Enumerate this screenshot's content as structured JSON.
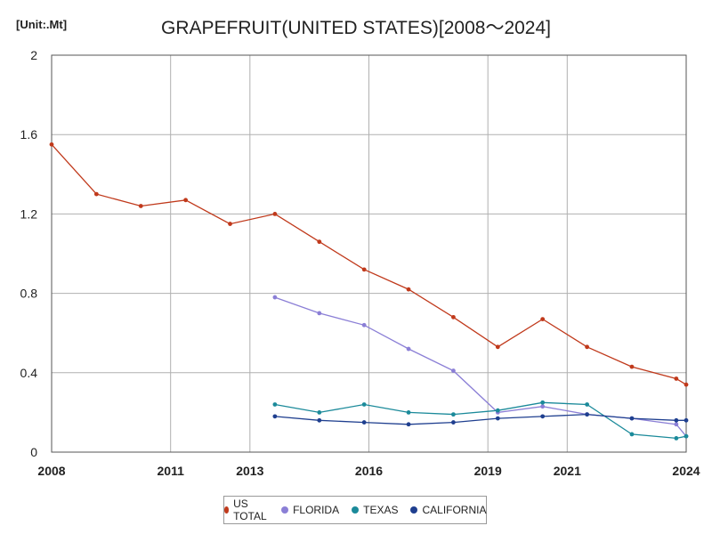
{
  "unit_label": "[Unit:.Mt]",
  "chart_data": {
    "type": "line",
    "title": "GRAPEFRUIT(UNITED STATES)[2008～2024]",
    "xlabel": "",
    "ylabel": "",
    "xlim": [
      2008,
      2024
    ],
    "ylim": [
      0,
      2
    ],
    "x_ticks": [
      "2008",
      "2011",
      "2013",
      "2016",
      "2019",
      "2021",
      "2024"
    ],
    "y_ticks": [
      "0",
      "0.4",
      "0.8",
      "1.2",
      "1.6",
      "2"
    ],
    "grid": true,
    "legend_position": "bottom",
    "series": [
      {
        "name": "US TOTAL",
        "color": "#c0391b",
        "x": [
          2008,
          2009.13,
          2010.25,
          2011.38,
          2012.5,
          2013.63,
          2014.75,
          2015.88,
          2017,
          2018.13,
          2019.25,
          2020.38,
          2021.5,
          2022.63,
          2023.75,
          2024
        ],
        "values": [
          1.55,
          1.3,
          1.24,
          1.27,
          1.15,
          1.2,
          1.06,
          0.92,
          0.82,
          0.68,
          0.53,
          0.67,
          0.53,
          0.43,
          0.37,
          0.34
        ]
      },
      {
        "name": "FLORIDA",
        "color": "#8b7fd6",
        "x": [
          2013.63,
          2014.75,
          2015.88,
          2017,
          2018.13,
          2019.25,
          2020.38,
          2021.5,
          2022.63,
          2023.75,
          2024
        ],
        "values": [
          0.78,
          0.7,
          0.64,
          0.52,
          0.41,
          0.2,
          0.23,
          0.19,
          0.17,
          0.14,
          0.08
        ]
      },
      {
        "name": "TEXAS",
        "color": "#1b8a9a",
        "x": [
          2013.63,
          2014.75,
          2015.88,
          2017,
          2018.13,
          2019.25,
          2020.38,
          2021.5,
          2022.63,
          2023.75,
          2024
        ],
        "values": [
          0.24,
          0.2,
          0.24,
          0.2,
          0.19,
          0.21,
          0.25,
          0.24,
          0.09,
          0.07,
          0.08
        ]
      },
      {
        "name": "CALIFORNIA",
        "color": "#1f3f8f",
        "x": [
          2013.63,
          2014.75,
          2015.88,
          2017,
          2018.13,
          2019.25,
          2020.38,
          2021.5,
          2022.63,
          2023.75,
          2024
        ],
        "values": [
          0.18,
          0.16,
          0.15,
          0.14,
          0.15,
          0.17,
          0.18,
          0.19,
          0.17,
          0.16,
          0.16
        ]
      }
    ]
  }
}
